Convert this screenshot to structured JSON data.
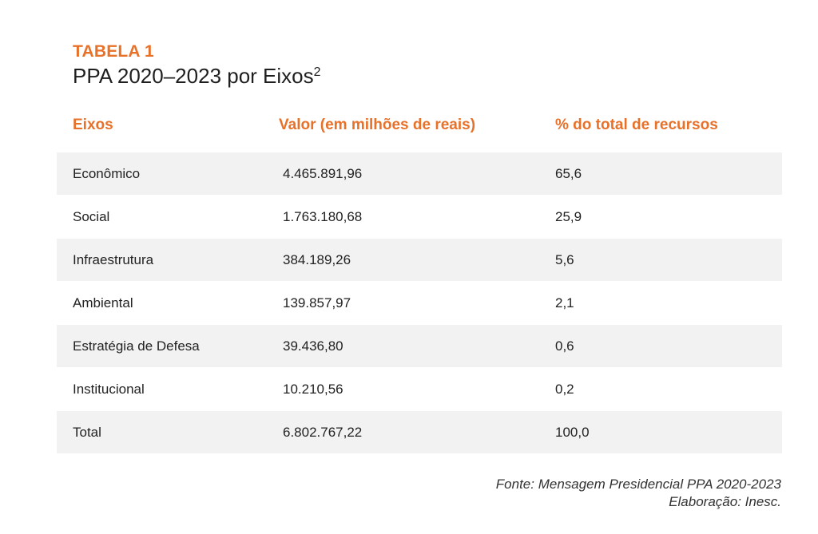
{
  "table_label": "TABELA 1",
  "title": "PPA 2020–2023 por Eixos",
  "title_superscript": "2",
  "columns": [
    "Eixos",
    "Valor (em milhões de reais)",
    "% do total de recursos"
  ],
  "rows": [
    {
      "eixo": "Econômico",
      "valor": "4.465.891,96",
      "percent": "65,6"
    },
    {
      "eixo": "Social",
      "valor": "1.763.180,68",
      "percent": "25,9"
    },
    {
      "eixo": "Infraestrutura",
      "valor": "384.189,26",
      "percent": "5,6"
    },
    {
      "eixo": "Ambiental",
      "valor": "139.857,97",
      "percent": "2,1"
    },
    {
      "eixo": "Estratégia de Defesa",
      "valor": "39.436,80",
      "percent": "0,6"
    },
    {
      "eixo": "Institucional",
      "valor": "10.210,56",
      "percent": "0,2"
    },
    {
      "eixo": "Total",
      "valor": "6.802.767,22",
      "percent": "100,0"
    }
  ],
  "source_line1": "Fonte: Mensagem Presidencial PPA 2020-2023",
  "source_line2": "Elaboração: Inesc.",
  "colors": {
    "accent": "#e8712a",
    "row_shade": "#f2f2f2",
    "text": "#222222"
  }
}
